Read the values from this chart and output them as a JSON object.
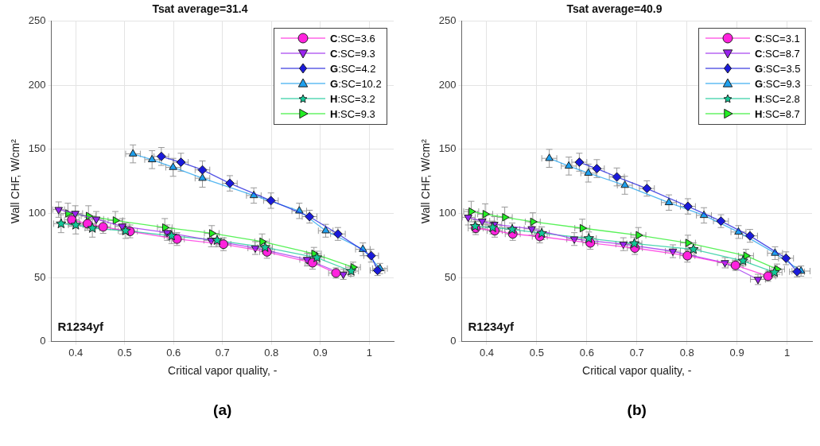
{
  "chart_data": [
    {
      "type": "line",
      "title": "Tsat average=31.4",
      "xlabel": "Critical vapor quality, -",
      "ylabel": "Wall CHF, W/cm²",
      "xlim": [
        0.35,
        1.05
      ],
      "ylim": [
        0,
        250
      ],
      "xticks": [
        0.4,
        0.5,
        0.6,
        0.7,
        0.8,
        0.9,
        1
      ],
      "yticks": [
        0,
        50,
        100,
        150,
        200,
        250
      ],
      "grid": true,
      "legend": "top right",
      "annotations": [
        "R1234yf",
        "(a)"
      ],
      "series": [
        {
          "name": "C:SC=3.6",
          "color": "#ff22dd",
          "marker": "circle",
          "x": [
            0.392,
            0.424,
            0.456,
            0.511,
            0.607,
            0.702,
            0.791,
            0.884,
            0.932
          ],
          "values": [
            95,
            92,
            89.5,
            86,
            80,
            76,
            70,
            61.5,
            53.5
          ],
          "errors": [
            5,
            5,
            5,
            5,
            5,
            5,
            5,
            5,
            4
          ],
          "xerrors": [
            0.015,
            0.015,
            0.015,
            0.015,
            0.015,
            0.015,
            0.015,
            0.015,
            0.015
          ]
        },
        {
          "name": "C:SC=9.3",
          "color": "#9922ee",
          "marker": "triangle-down",
          "x": [
            0.365,
            0.399,
            0.442,
            0.495,
            0.587,
            0.677,
            0.767,
            0.873,
            0.947
          ],
          "values": [
            103,
            100,
            95.5,
            90,
            85,
            79,
            73,
            64,
            52.5
          ],
          "errors": [
            6,
            6,
            6,
            6,
            6,
            5,
            5,
            5,
            4
          ],
          "xerrors": [
            0.012,
            0.015,
            0.015,
            0.015,
            0.015,
            0.015,
            0.015,
            0.015,
            0.015
          ]
        },
        {
          "name": "G:SC=4.2",
          "color": "#1a1adb",
          "marker": "diamond",
          "x": [
            0.575,
            0.615,
            0.659,
            0.715,
            0.799,
            0.878,
            0.936,
            1.004,
            1.017
          ],
          "values": [
            144.5,
            140,
            134,
            123.5,
            110,
            97.5,
            84,
            67,
            55.5
          ],
          "errors": [
            7,
            7,
            7,
            6,
            6,
            5,
            5,
            5,
            4
          ],
          "xerrors": [
            0.015,
            0.015,
            0.015,
            0.015,
            0.015,
            0.015,
            0.015,
            0.015,
            0.015
          ]
        },
        {
          "name": "G:SC=10.2",
          "color": "#1ea0ee",
          "marker": "triangle",
          "x": [
            0.517,
            0.556,
            0.599,
            0.659,
            0.764,
            0.857,
            0.911,
            0.987,
            1.022
          ],
          "values": [
            146.5,
            142,
            136,
            127.5,
            114,
            102,
            86.5,
            72,
            57
          ],
          "errors": [
            7,
            7,
            7,
            7,
            6,
            6,
            5,
            5,
            4
          ],
          "xerrors": [
            0.015,
            0.015,
            0.015,
            0.015,
            0.015,
            0.015,
            0.015,
            0.015,
            0.015
          ]
        },
        {
          "name": "H:SC=3.2",
          "color": "#11c896",
          "marker": "star",
          "x": [
            0.37,
            0.4,
            0.434,
            0.502,
            0.596,
            0.689,
            0.787,
            0.893,
            0.963
          ],
          "values": [
            92,
            91,
            88.5,
            86.5,
            82.5,
            79,
            73.5,
            65.5,
            55
          ],
          "errors": [
            7,
            7,
            7,
            6,
            6,
            5,
            5,
            5,
            4
          ],
          "xerrors": [
            0.015,
            0.015,
            0.015,
            0.015,
            0.015,
            0.015,
            0.015,
            0.015,
            0.015
          ]
        },
        {
          "name": "H:SC=9.3",
          "color": "#22ee22",
          "marker": "triangle-right",
          "x": [
            0.384,
            0.426,
            0.481,
            0.582,
            0.678,
            0.781,
            0.887,
            0.967
          ],
          "values": [
            100,
            98,
            94.5,
            89,
            84.5,
            78,
            68.5,
            58
          ],
          "errors": [
            8,
            8,
            7,
            7,
            6,
            6,
            5,
            4
          ],
          "xerrors": [
            0.015,
            0.015,
            0.015,
            0.015,
            0.015,
            0.015,
            0.015,
            0.015
          ]
        }
      ]
    },
    {
      "type": "line",
      "title": "Tsat average=40.9",
      "xlabel": "Critical vapor quality, -",
      "ylabel": "Wall CHF, W/cm²",
      "xlim": [
        0.35,
        1.05
      ],
      "ylim": [
        0,
        250
      ],
      "xticks": [
        0.4,
        0.5,
        0.6,
        0.7,
        0.8,
        0.9,
        1
      ],
      "yticks": [
        0,
        50,
        100,
        150,
        200,
        250
      ],
      "grid": true,
      "legend": "top right",
      "annotations": [
        "R1234yf",
        "(b)"
      ],
      "series": [
        {
          "name": "C:SC=3.1",
          "color": "#ff22dd",
          "marker": "circle",
          "x": [
            0.378,
            0.416,
            0.452,
            0.506,
            0.607,
            0.696,
            0.801,
            0.897,
            0.962
          ],
          "values": [
            88.5,
            86.5,
            84,
            82,
            77,
            73,
            67,
            59.5,
            51
          ],
          "errors": [
            5,
            5,
            5,
            5,
            5,
            5,
            5,
            4,
            4
          ],
          "xerrors": [
            0.015,
            0.015,
            0.015,
            0.015,
            0.015,
            0.015,
            0.015,
            0.015,
            0.015
          ]
        },
        {
          "name": "C:SC=8.7",
          "color": "#9922ee",
          "marker": "triangle-down",
          "x": [
            0.363,
            0.391,
            0.415,
            0.49,
            0.575,
            0.673,
            0.772,
            0.876,
            0.942
          ],
          "values": [
            97,
            94,
            91.5,
            88,
            80,
            76,
            70.5,
            61.5,
            48.5
          ],
          "errors": [
            6,
            6,
            6,
            5,
            5,
            5,
            5,
            4,
            4
          ],
          "xerrors": [
            [
              0.351,
              0.377
            ],
            0.015,
            0.015,
            0.015,
            0.015,
            0.015,
            0.015,
            0.015,
            0.015
          ]
        },
        {
          "name": "G:SC=3.5",
          "color": "#1a1adb",
          "marker": "diamond",
          "x": [
            0.585,
            0.62,
            0.66,
            0.72,
            0.802,
            0.868,
            0.926,
            0.998,
            1.02
          ],
          "values": [
            140,
            135,
            128.5,
            119.5,
            105.5,
            94,
            82.5,
            65,
            54.5
          ],
          "errors": [
            7,
            7,
            7,
            6,
            6,
            5,
            5,
            5,
            4
          ],
          "xerrors": [
            0.015,
            0.015,
            0.015,
            0.015,
            0.015,
            0.015,
            0.015,
            0.015,
            0.015
          ]
        },
        {
          "name": "G:SC=9.3",
          "color": "#1ea0ee",
          "marker": "triangle",
          "x": [
            0.525,
            0.564,
            0.603,
            0.676,
            0.764,
            0.834,
            0.903,
            0.976,
            1.028
          ],
          "values": [
            143,
            137,
            131.5,
            122,
            108.5,
            98.5,
            85.5,
            69,
            55
          ],
          "errors": [
            7,
            7,
            7,
            7,
            6,
            6,
            5,
            5,
            4
          ],
          "xerrors": [
            0.015,
            0.015,
            0.015,
            0.015,
            0.015,
            0.015,
            0.015,
            0.015,
            0.018
          ]
        },
        {
          "name": "H:SC=2.8",
          "color": "#11c896",
          "marker": "star",
          "x": [
            0.377,
            0.412,
            0.451,
            0.51,
            0.604,
            0.695,
            0.813,
            0.912,
            0.975
          ],
          "values": [
            90,
            89,
            87.5,
            84.5,
            80.5,
            76.5,
            72,
            63,
            54
          ],
          "errors": [
            5,
            5,
            5,
            5,
            5,
            5,
            5,
            4,
            4
          ],
          "xerrors": [
            null,
            0.015,
            0.015,
            0.015,
            0.015,
            0.015,
            0.015,
            0.015,
            0.015
          ]
        },
        {
          "name": "H:SC=8.7",
          "color": "#22ee22",
          "marker": "triangle-right",
          "x": [
            0.369,
            0.397,
            0.436,
            0.492,
            0.591,
            0.703,
            0.802,
            0.918,
            0.98
          ],
          "values": [
            101.5,
            99.5,
            97,
            93.5,
            88.5,
            83,
            77,
            67,
            56.5
          ],
          "errors": [
            8,
            8,
            8,
            7,
            7,
            6,
            6,
            5,
            4
          ],
          "xerrors": [
            0.015,
            0.015,
            0.015,
            0.015,
            0.015,
            0.015,
            0.015,
            0.015,
            0.015
          ]
        }
      ]
    }
  ]
}
